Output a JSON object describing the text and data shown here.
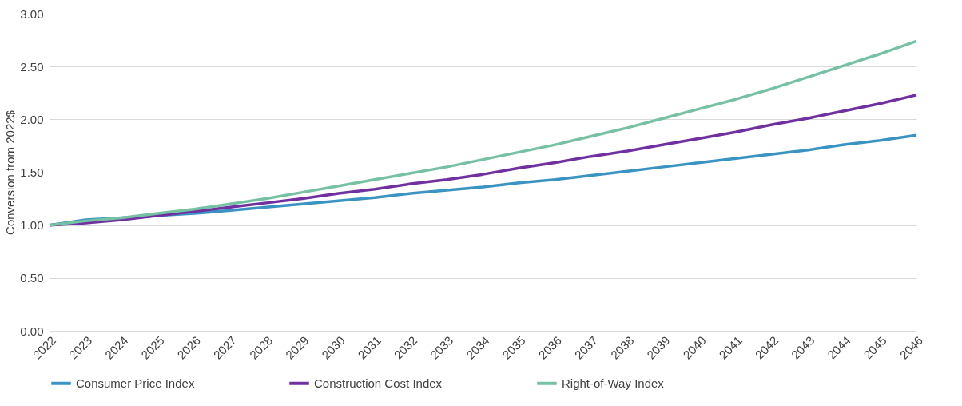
{
  "chart_data": {
    "type": "line",
    "ylabel": "Conversion from 2022$",
    "categories": [
      "2022",
      "2023",
      "2024",
      "2025",
      "2026",
      "2027",
      "2028",
      "2029",
      "2030",
      "2031",
      "2032",
      "2033",
      "2034",
      "2035",
      "2036",
      "2037",
      "2038",
      "2039",
      "2040",
      "2041",
      "2042",
      "2043",
      "2044",
      "2045",
      "2046"
    ],
    "series": [
      {
        "name": "Consumer Price Index",
        "color": "#3a93c3",
        "values": [
          1.0,
          1.05,
          1.07,
          1.09,
          1.11,
          1.14,
          1.17,
          1.2,
          1.23,
          1.26,
          1.3,
          1.33,
          1.36,
          1.4,
          1.43,
          1.47,
          1.51,
          1.55,
          1.59,
          1.63,
          1.67,
          1.71,
          1.76,
          1.8,
          1.85
        ]
      },
      {
        "name": "Construction Cost Index",
        "color": "#7030a0",
        "values": [
          1.0,
          1.02,
          1.05,
          1.09,
          1.13,
          1.17,
          1.21,
          1.25,
          1.3,
          1.34,
          1.39,
          1.43,
          1.48,
          1.54,
          1.59,
          1.65,
          1.7,
          1.76,
          1.82,
          1.88,
          1.95,
          2.01,
          2.08,
          2.15,
          2.23
        ]
      },
      {
        "name": "Right-of-Way Index",
        "color": "#76c0a4",
        "values": [
          1.0,
          1.04,
          1.07,
          1.11,
          1.15,
          1.2,
          1.25,
          1.31,
          1.37,
          1.43,
          1.49,
          1.55,
          1.62,
          1.69,
          1.76,
          1.84,
          1.92,
          2.01,
          2.1,
          2.19,
          2.29,
          2.4,
          2.51,
          2.62,
          2.74
        ]
      }
    ],
    "ylim": [
      0,
      3
    ],
    "yticks": [
      {
        "value": 0,
        "label": "0.00"
      },
      {
        "value": 0.5,
        "label": "0.50"
      },
      {
        "value": 1,
        "label": "1.00"
      },
      {
        "value": 1.5,
        "label": "1.50"
      },
      {
        "value": 2,
        "label": "2.00"
      },
      {
        "value": 2.5,
        "label": "2.50"
      },
      {
        "value": 3,
        "label": "3.00"
      }
    ],
    "grid": "y",
    "legend": "bottom",
    "line_style": "solid"
  }
}
